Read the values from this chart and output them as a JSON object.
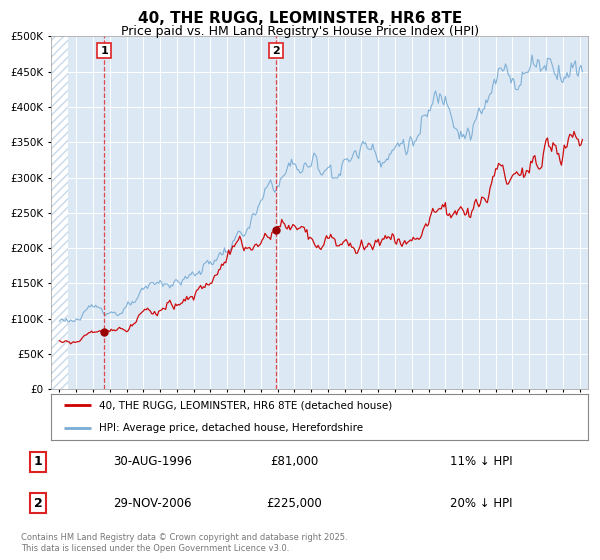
{
  "title": "40, THE RUGG, LEOMINSTER, HR6 8TE",
  "subtitle": "Price paid vs. HM Land Registry's House Price Index (HPI)",
  "title_fontsize": 11,
  "subtitle_fontsize": 9,
  "background_color": "#ffffff",
  "plot_bg_color": "#dde8f5",
  "grid_color": "#ffffff",
  "ylim": [
    0,
    500000
  ],
  "xlim_start": 1993.5,
  "xlim_end": 2025.5,
  "ytick_labels": [
    "£0",
    "£50K",
    "£100K",
    "£150K",
    "£200K",
    "£250K",
    "£300K",
    "£350K",
    "£400K",
    "£450K",
    "£500K"
  ],
  "ytick_values": [
    0,
    50000,
    100000,
    150000,
    200000,
    250000,
    300000,
    350000,
    400000,
    450000,
    500000
  ],
  "sale1_x": 1996.664,
  "sale1_y": 81000,
  "sale1_label": "1",
  "sale1_date": "30-AUG-1996",
  "sale1_price": "£81,000",
  "sale1_hpi": "11% ↓ HPI",
  "sale2_x": 2006.913,
  "sale2_y": 225000,
  "sale2_label": "2",
  "sale2_date": "29-NOV-2006",
  "sale2_price": "£225,000",
  "sale2_hpi": "20% ↓ HPI",
  "legend_label_red": "40, THE RUGG, LEOMINSTER, HR6 8TE (detached house)",
  "legend_label_blue": "HPI: Average price, detached house, Herefordshire",
  "footer_text": "Contains HM Land Registry data © Crown copyright and database right 2025.\nThis data is licensed under the Open Government Licence v3.0.",
  "red_color": "#cc0000",
  "blue_color": "#7aadd4",
  "vline_color": "#dd2222",
  "marker_color": "#990000",
  "hatch_color": "#c8d8e8"
}
